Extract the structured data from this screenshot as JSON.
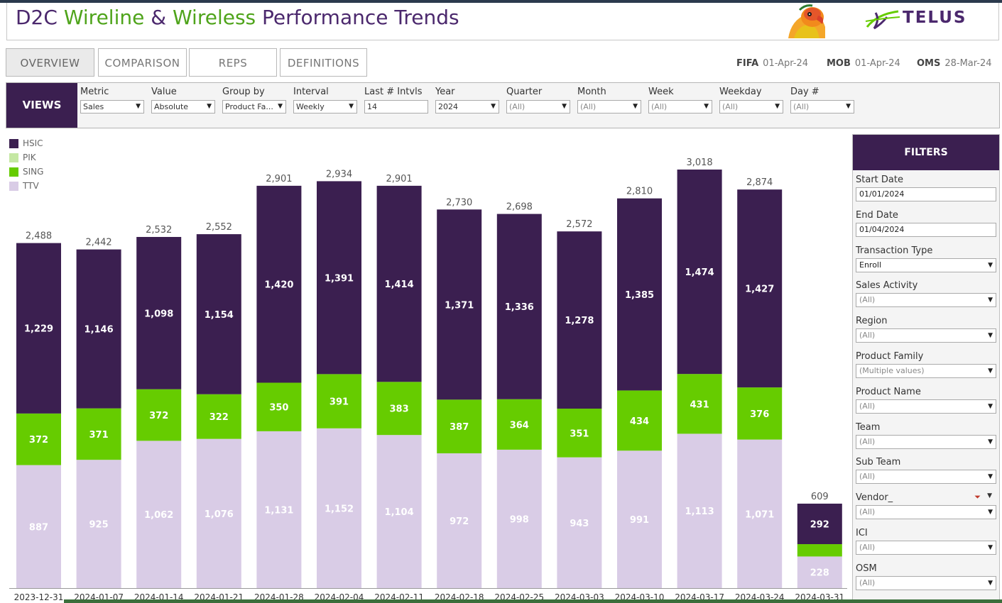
{
  "header": {
    "title_parts": [
      "D2C ",
      "Wireline",
      " & ",
      "Wireless",
      " Performance Trends"
    ],
    "logo_text": "TELUS",
    "mascot_icon": "parrot-mascot-icon",
    "colors": {
      "brand_purple": "#4b286d",
      "brand_green": "#4fa41b"
    }
  },
  "tabs": [
    {
      "label": "OVERVIEW",
      "active": true
    },
    {
      "label": "COMPARISON",
      "active": false
    },
    {
      "label": "REPS",
      "active": false
    },
    {
      "label": "DEFINITIONS",
      "active": false
    }
  ],
  "data_dates": [
    {
      "key": "FIFA",
      "value": "01-Apr-24"
    },
    {
      "key": "MOB",
      "value": "01-Apr-24"
    },
    {
      "key": "OMS",
      "value": "28-Mar-24"
    }
  ],
  "views": {
    "label": "VIEWS",
    "controls": [
      {
        "label": "Metric",
        "value": "Sales",
        "type": "dropdown"
      },
      {
        "label": "Value",
        "value": "Absolute",
        "type": "dropdown"
      },
      {
        "label": "Group by",
        "value": "Product Fa...",
        "type": "dropdown"
      },
      {
        "label": "Interval",
        "value": "Weekly",
        "type": "dropdown"
      },
      {
        "label": "Last # Intvls",
        "value": "14",
        "type": "text"
      },
      {
        "label": "Year",
        "value": "2024",
        "type": "dropdown"
      },
      {
        "label": "Quarter",
        "value": "(All)",
        "type": "dropdown"
      },
      {
        "label": "Month",
        "value": "(All)",
        "type": "dropdown"
      },
      {
        "label": "Week",
        "value": "(All)",
        "type": "dropdown"
      },
      {
        "label": "Weekday",
        "value": "(All)",
        "type": "dropdown"
      },
      {
        "label": "Day #",
        "value": "(All)",
        "type": "dropdown"
      }
    ]
  },
  "filters": {
    "title": "FILTERS",
    "items": [
      {
        "label": "Start Date",
        "value": "01/01/2024",
        "type": "text"
      },
      {
        "label": "End Date",
        "value": "01/04/2024",
        "type": "text"
      },
      {
        "label": "Transaction Type",
        "value": "Enroll",
        "type": "dropdown"
      },
      {
        "label": "Sales Activity",
        "value": "(All)",
        "type": "dropdown"
      },
      {
        "label": "Region",
        "value": "(All)",
        "type": "dropdown"
      },
      {
        "label": "Product Family",
        "value": "(Multiple values)",
        "type": "dropdown"
      },
      {
        "label": "Product Name",
        "value": "(All)",
        "type": "dropdown"
      },
      {
        "label": "Team",
        "value": "(All)",
        "type": "dropdown"
      },
      {
        "label": "Sub Team",
        "value": "(All)",
        "type": "dropdown"
      },
      {
        "label": "Vendor_",
        "value": "(All)",
        "type": "dropdown",
        "has_filter_icon": true
      },
      {
        "label": "ICI",
        "value": "(All)",
        "type": "dropdown"
      },
      {
        "label": "OSM",
        "value": "(All)",
        "type": "dropdown"
      }
    ]
  },
  "chart_data": {
    "type": "bar",
    "stacked": true,
    "categories": [
      "2023-12-31",
      "2024-01-07",
      "2024-01-14",
      "2024-01-21",
      "2024-01-28",
      "2024-02-04",
      "2024-02-11",
      "2024-02-18",
      "2024-02-25",
      "2024-03-03",
      "2024-03-10",
      "2024-03-17",
      "2024-03-24",
      "2024-03-31"
    ],
    "series": [
      {
        "name": "TTV",
        "color": "#d9cce6",
        "values": [
          887,
          925,
          1062,
          1076,
          1131,
          1152,
          1104,
          972,
          998,
          943,
          991,
          1113,
          1071,
          228
        ]
      },
      {
        "name": "SING",
        "color": "#66cc00",
        "values": [
          372,
          371,
          372,
          322,
          350,
          391,
          383,
          387,
          364,
          351,
          434,
          431,
          376,
          89
        ]
      },
      {
        "name": "PIK",
        "color": "#c5e8a3",
        "values": [
          0,
          0,
          0,
          0,
          0,
          0,
          0,
          0,
          0,
          0,
          0,
          0,
          0,
          0
        ]
      },
      {
        "name": "HSIC",
        "color": "#3b1f50",
        "values": [
          1229,
          1146,
          1098,
          1154,
          1420,
          1391,
          1414,
          1371,
          1336,
          1278,
          1385,
          1474,
          1427,
          292
        ]
      }
    ],
    "totals": [
      2488,
      2442,
      2532,
      2552,
      2901,
      2934,
      2901,
      2730,
      2698,
      2572,
      2810,
      3018,
      2874,
      609
    ],
    "legend": [
      "HSIC",
      "PIK",
      "SING",
      "TTV"
    ],
    "legend_position": "top-left",
    "ylim": [
      0,
      3018
    ],
    "grid": false
  }
}
